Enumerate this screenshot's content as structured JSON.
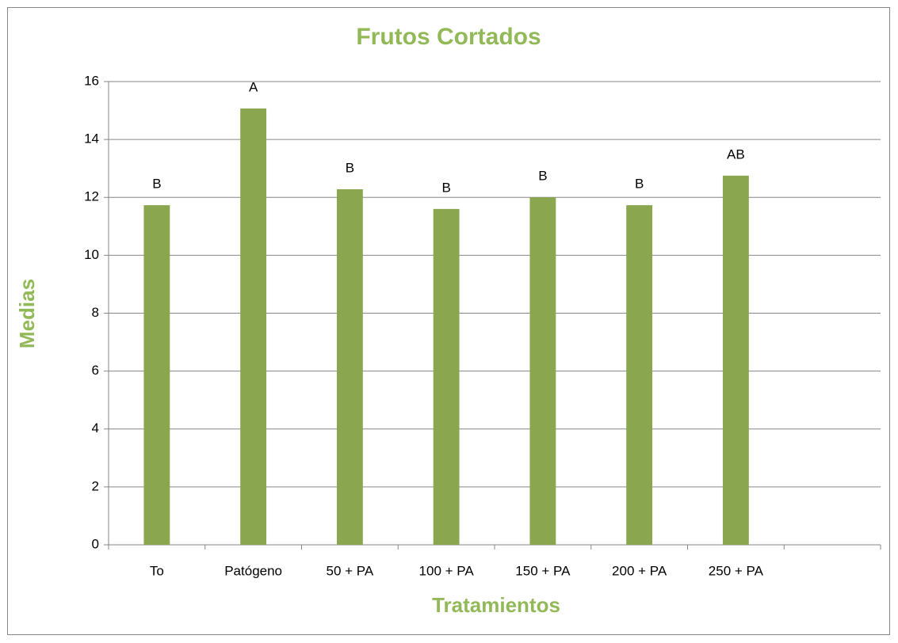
{
  "chart_data": {
    "type": "bar",
    "title": "Frutos Cortados",
    "xlabel": "Tratamientos",
    "ylabel": "Medias",
    "categories": [
      "To",
      "Patógeno",
      "50 + PA",
      "100 + PA",
      "150 + PA",
      "200 + PA",
      "250 + PA",
      null
    ],
    "values": [
      11.73,
      15.07,
      12.28,
      11.6,
      12.0,
      11.73,
      12.75,
      null
    ],
    "annotations": [
      "B",
      "A",
      "B",
      "B",
      "B",
      "B",
      "AB",
      null
    ],
    "color": "#8aa64e",
    "ylim": [
      0,
      16
    ],
    "yticks": [
      0,
      2,
      4,
      6,
      8,
      10,
      12,
      14,
      16
    ],
    "grid": true
  }
}
